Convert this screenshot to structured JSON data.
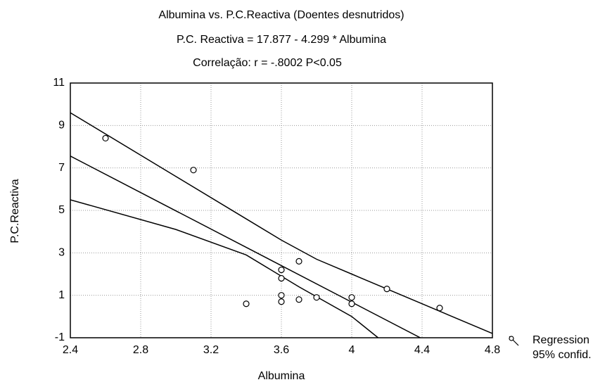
{
  "chart_data": {
    "type": "scatter",
    "title": "Albumina vs. P.C.Reactiva (Doentes desnutridos)",
    "subtitle": "P.C. Reactiva = 17.877 - 4.299  * Albumina",
    "annotation": "Correlação: r = -.8002   P<0.05",
    "xlabel": "Albumina",
    "ylabel": "P.C.Reactiva",
    "xlim": [
      2.4,
      4.8
    ],
    "ylim": [
      -1,
      11
    ],
    "xticks": [
      2.4,
      2.8,
      3.2,
      3.6,
      4,
      4.4,
      4.8
    ],
    "yticks": [
      -1,
      1,
      3,
      5,
      7,
      9,
      11
    ],
    "grid": true,
    "color": "#000000",
    "series": [
      {
        "x": [
          2.6,
          3.1,
          3.4,
          3.6,
          3.6,
          3.6,
          3.6,
          3.7,
          3.7,
          3.8,
          4.0,
          4.0,
          4.2,
          4.5
        ],
        "values": [
          8.4,
          6.9,
          0.6,
          2.2,
          1.8,
          1.0,
          0.7,
          2.6,
          0.8,
          0.9,
          0.9,
          0.6,
          1.3,
          0.4
        ]
      }
    ],
    "regression": {
      "name": "Regression",
      "x": [
        2.4,
        4.39
      ],
      "values": [
        7.56,
        -1
      ]
    },
    "confidence": {
      "name": "95% confid.",
      "upper": {
        "x": [
          2.4,
          3.0,
          3.4,
          3.6,
          3.8,
          4.0,
          4.4,
          4.8
        ],
        "values": [
          9.6,
          6.6,
          4.6,
          3.6,
          2.7,
          2.0,
          0.6,
          -0.8
        ]
      },
      "lower": {
        "x": [
          2.4,
          3.0,
          3.4,
          3.7,
          4.0,
          4.15
        ],
        "values": [
          5.5,
          4.1,
          2.9,
          1.4,
          0.0,
          -1
        ]
      }
    }
  }
}
